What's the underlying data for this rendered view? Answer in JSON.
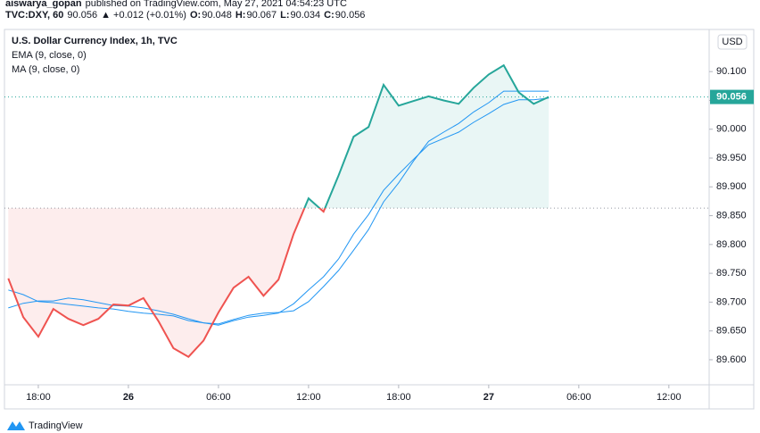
{
  "header": {
    "author": "aiswarya_gopan",
    "published": "published on TradingView.com, May 27, 2021 04:54:23 UTC",
    "symbol": "TVC:DXY, 60",
    "last": "90.056",
    "change": "▲ +0.012 (+0.01%)",
    "ohlc": [
      {
        "label": "O:",
        "value": "90.048"
      },
      {
        "label": "H:",
        "value": "90.067"
      },
      {
        "label": "L:",
        "value": "90.034"
      },
      {
        "label": "C:",
        "value": "90.056"
      }
    ]
  },
  "footer": {
    "brand": "TradingView"
  },
  "chart_data": {
    "type": "line",
    "currency": "USD",
    "categories": [
      null,
      null,
      "18:00",
      null,
      null,
      null,
      null,
      null,
      "26",
      null,
      null,
      null,
      null,
      null,
      "06:00",
      null,
      null,
      null,
      null,
      null,
      "12:00",
      null,
      null,
      null,
      null,
      null,
      "18:00",
      null,
      null,
      null,
      null,
      null,
      "27",
      null,
      null,
      null,
      null,
      null,
      "06:00",
      null,
      null,
      null,
      null,
      null,
      "12:00",
      null,
      null
    ],
    "baseline": 89.863,
    "up_color": "#26a69a",
    "down_color": "#ef5350",
    "series": [
      {
        "name": "U.S. Dollar Currency Index, 1h, TVC",
        "color": "#26a69a",
        "values": [
          89.741,
          89.674,
          89.64,
          89.688,
          89.671,
          89.66,
          89.671,
          89.696,
          89.694,
          89.707,
          89.667,
          89.62,
          89.605,
          89.633,
          89.682,
          89.725,
          89.744,
          89.711,
          89.739,
          89.818,
          89.88,
          89.857,
          89.92,
          89.987,
          90.004,
          90.077,
          90.041,
          90.049,
          90.057,
          90.05,
          90.044,
          90.072,
          90.095,
          90.111,
          90.064,
          90.044,
          90.056,
          null,
          null,
          null,
          null,
          null,
          null,
          null,
          null,
          null,
          null
        ]
      },
      {
        "name": "EMA (9, close, 0)",
        "color": "#2196f3",
        "values": [
          89.69,
          89.698,
          89.702,
          89.702,
          89.707,
          89.704,
          89.699,
          89.694,
          89.693,
          89.69,
          89.685,
          89.679,
          89.671,
          89.664,
          89.662,
          89.67,
          89.677,
          89.681,
          89.682,
          89.685,
          89.701,
          89.727,
          89.755,
          89.79,
          89.826,
          89.874,
          89.907,
          89.945,
          89.979,
          89.995,
          90.01,
          90.03,
          90.046,
          90.066,
          90.066,
          90.066,
          90.066,
          null,
          null,
          null,
          null,
          null,
          null,
          null,
          null,
          null,
          null
        ]
      },
      {
        "name": "MA (9, close, 0)",
        "color": "#2196f3",
        "values": [
          89.721,
          89.713,
          89.701,
          89.699,
          89.696,
          89.693,
          89.69,
          89.688,
          89.684,
          89.681,
          89.679,
          89.676,
          89.668,
          89.664,
          89.66,
          89.668,
          89.674,
          89.677,
          89.681,
          89.697,
          89.721,
          89.744,
          89.775,
          89.818,
          89.852,
          89.894,
          89.922,
          89.948,
          89.973,
          89.984,
          89.995,
          90.012,
          90.027,
          90.043,
          90.051,
          90.051,
          90.054,
          null,
          null,
          null,
          null,
          null,
          null,
          null,
          null,
          null,
          null
        ]
      }
    ],
    "ylim": [
      89.555,
      90.17
    ],
    "yticks": [
      {
        "value": 89.6,
        "label": "89.600"
      },
      {
        "value": 89.65,
        "label": "89.650"
      },
      {
        "value": 89.7,
        "label": "89.700"
      },
      {
        "value": 89.75,
        "label": "89.750"
      },
      {
        "value": 89.8,
        "label": "89.800"
      },
      {
        "value": 89.85,
        "label": "89.850"
      },
      {
        "value": 89.9,
        "label": "89.900"
      },
      {
        "value": 89.95,
        "label": "89.950"
      },
      {
        "value": 90.0,
        "label": "90.000"
      },
      {
        "value": 90.05,
        "label": "90.050"
      },
      {
        "value": 90.1,
        "label": "90.100"
      }
    ]
  }
}
